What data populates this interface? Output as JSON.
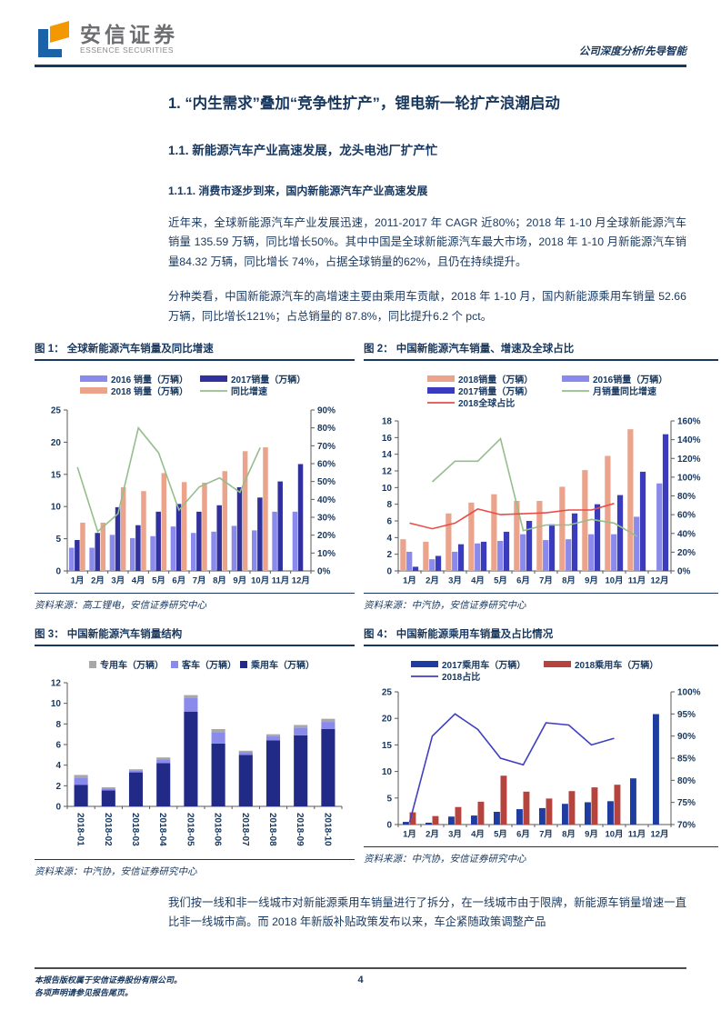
{
  "header": {
    "logo_cn": "安信证券",
    "logo_en": "ESSENCE SECURITIES",
    "right_text": "公司深度分析/先导智能"
  },
  "headings": {
    "h1": "1. “内生需求”叠加“竞争性扩产”，锂电新一轮扩产浪潮启动",
    "h2": "1.1. 新能源汽车产业高速发展，龙头电池厂扩产忙",
    "h3": "1.1.1. 消费市逐步到来，国内新能源汽车产业高速发展"
  },
  "paragraphs": {
    "p1": "近年来，全球新能源汽车产业发展迅速，2011-2017 年 CAGR 近80%；2018 年 1-10 月全球新能源汽车销量 135.59 万辆，同比增长50%。其中中国是全球新能源汽车最大市场，2018 年 1-10 月新能源汽车销量84.32 万辆，同比增长 74%，占据全球销量的62%，且仍在持续提升。",
    "p2": "分种类看，中国新能源汽车的高增速主要由乘用车贡献，2018 年 1-10 月，国内新能源乘用车销量 52.66 万辆，同比增长121%；占总销量的 87.8%，同比提升6.2 个 pct。",
    "p3": "我们按一线和非一线城市对新能源乘用车销量进行了拆分，在一线城市由于限牌，新能源车销量增速一直比非一线城市高。而 2018 年新版补贴政策发布以来，车企紧随政策调整产品"
  },
  "figures": [
    {
      "title": "图 1： 全球新能源汽车销量及同比增速",
      "source": "资料来源：高工锂电，安信证券研究中心"
    },
    {
      "title": "图 2： 中国新能源汽车销量、增速及全球占比",
      "source": "资料来源：中汽协，安信证券研究中心"
    },
    {
      "title": "图 3： 中国新能源汽车销量结构",
      "source": "资料来源：中汽协，安信证券研究中心"
    },
    {
      "title": "图 4： 中国新能源乘用车销量及占比情况",
      "source": "资料来源：中汽协，安信证券研究中心"
    }
  ],
  "footer": {
    "left_line1": "本报告版权属于安信证券股份有限公司。",
    "left_line2": "各项声明请参见报告尾页。",
    "page_number": "4"
  },
  "colors": {
    "navy_text": "#17375e",
    "light_blue": "#8a8aec",
    "dark_blue_2017": "#31319e",
    "salmon_2018": "#eba38b",
    "green_line": "#94be8c",
    "red_line": "#e84d4a",
    "brick_2018": "#b5443f",
    "gray_special": "#a8a8a8",
    "logo_blue": "#1a63a8",
    "logo_orange": "#f39800"
  },
  "chart_data": [
    {
      "id": "fig1",
      "type": "bar",
      "title": "全球新能源汽车销量及同比增速",
      "legend_position": "top",
      "grid": false,
      "categories": [
        "1月",
        "2月",
        "3月",
        "4月",
        "5月",
        "6月",
        "7月",
        "8月",
        "9月",
        "10月",
        "11月",
        "12月"
      ],
      "series": [
        {
          "name": "2016 销量（万辆）",
          "color": "#8a8aec",
          "values": [
            3.6,
            3.6,
            5.6,
            5.1,
            5.4,
            6.9,
            5.9,
            6.1,
            7.0,
            6.3,
            9.2,
            9.2
          ]
        },
        {
          "name": "2017销量（万辆）",
          "color": "#31319e",
          "values": [
            4.8,
            5.9,
            9.9,
            7.1,
            9.2,
            10.4,
            9.2,
            10.2,
            13.0,
            11.4,
            13.9,
            16.6
          ]
        },
        {
          "name": "2018 销量（万辆）",
          "color": "#eba38b",
          "values": [
            7.5,
            7.5,
            13.0,
            12.4,
            15.2,
            13.8,
            13.7,
            15.5,
            18.6,
            19.2,
            null,
            null
          ]
        }
      ],
      "lines": [
        {
          "name": "同比增速",
          "color": "#94be8c",
          "axis": "right",
          "values": [
            58,
            22,
            32,
            80,
            66,
            34,
            47,
            52,
            44,
            69,
            null,
            null
          ]
        }
      ],
      "left_axis": {
        "min": 0,
        "max": 25,
        "step": 5,
        "unit": ""
      },
      "right_axis": {
        "min": 0,
        "max": 90,
        "step": 10,
        "unit": "%"
      }
    },
    {
      "id": "fig2",
      "type": "bar",
      "title": "中国新能源汽车销量、增速及全球占比",
      "legend_position": "top",
      "grid": false,
      "categories": [
        "1月",
        "2月",
        "3月",
        "4月",
        "5月",
        "6月",
        "7月",
        "8月",
        "9月",
        "10月",
        "11月",
        "12月"
      ],
      "series": [
        {
          "name": "2018销量（万辆）",
          "color": "#eba38b",
          "values": [
            3.8,
            3.5,
            6.9,
            8.2,
            9.2,
            8.4,
            8.4,
            10.1,
            12.1,
            13.8,
            17.0,
            null
          ]
        },
        {
          "name": "2016销量（万辆）",
          "color": "#8a8aec",
          "values": [
            2.3,
            1.4,
            2.3,
            3.3,
            3.6,
            4.4,
            3.7,
            3.8,
            4.4,
            4.4,
            6.5,
            10.5
          ]
        },
        {
          "name": "2017销量（万辆）",
          "color": "#3b3bbd",
          "values": [
            0.5,
            1.8,
            3.2,
            3.5,
            4.7,
            6.0,
            5.6,
            6.9,
            8.0,
            9.1,
            11.9,
            16.4
          ]
        }
      ],
      "lines": [
        {
          "name": "月销量同比增速",
          "color": "#94be8c",
          "axis": "right",
          "values": [
            null,
            95,
            117,
            117,
            141,
            43,
            49,
            49,
            55,
            51,
            37,
            null
          ]
        },
        {
          "name": "2018全球占比",
          "color": "#e84d4a",
          "axis": "right",
          "values": [
            51,
            45,
            51,
            66,
            60,
            61,
            62,
            65,
            65,
            72,
            null,
            null
          ]
        }
      ],
      "left_axis": {
        "min": 0,
        "max": 18,
        "step": 2,
        "unit": ""
      },
      "right_axis": {
        "min": 0,
        "max": 160,
        "step": 20,
        "unit": "%"
      }
    },
    {
      "id": "fig3",
      "type": "bar",
      "stacked": true,
      "title": "中国新能源汽车销量结构",
      "legend_position": "top",
      "grid": false,
      "categories": [
        "2018-01",
        "2018-02",
        "2018-03",
        "2018-04",
        "2018-05",
        "2018-06",
        "2018-07",
        "2018-08",
        "2018-09",
        "2018-10"
      ],
      "series": [
        {
          "name": "专用车（万辆）",
          "color": "#a8a8a8",
          "values": [
            0.25,
            0.1,
            0.1,
            0.2,
            0.3,
            0.3,
            0.15,
            0.2,
            0.25,
            0.3
          ]
        },
        {
          "name": "客车（万辆）",
          "color": "#8a8aec",
          "values": [
            0.7,
            0.2,
            0.2,
            0.35,
            1.3,
            1.1,
            0.25,
            0.4,
            0.75,
            0.7
          ]
        },
        {
          "name": "乘用车（万辆）",
          "color": "#222a87",
          "values": [
            2.1,
            1.55,
            3.3,
            4.2,
            9.2,
            6.1,
            5.0,
            6.4,
            6.9,
            7.5
          ]
        }
      ],
      "lines": [],
      "left_axis": {
        "min": 0,
        "max": 12,
        "step": 2,
        "unit": ""
      },
      "right_axis": null
    },
    {
      "id": "fig4",
      "type": "bar",
      "title": "中国新能源乘用车销量及占比情况",
      "legend_position": "top",
      "grid": false,
      "categories": [
        "1月",
        "2月",
        "3月",
        "4月",
        "5月",
        "6月",
        "7月",
        "8月",
        "9月",
        "10月",
        "11月",
        "12月"
      ],
      "series": [
        {
          "name": "2017乘用车（万辆）",
          "color": "#1f3da0",
          "values": [
            0.5,
            0.35,
            1.5,
            1.7,
            2.4,
            2.9,
            3.1,
            3.9,
            4.2,
            4.4,
            8.7,
            20.8
          ]
        },
        {
          "name": "2018乘用车（万辆）",
          "color": "#b5443f",
          "values": [
            2.3,
            1.6,
            3.3,
            4.3,
            9.2,
            6.2,
            4.9,
            6.3,
            7.0,
            7.5,
            null,
            null
          ]
        }
      ],
      "lines": [
        {
          "name": "2018占比",
          "color": "#4040c0",
          "axis": "right",
          "values": [
            70.5,
            90,
            95,
            91.5,
            85,
            83.5,
            93,
            92.5,
            88,
            89.5,
            null,
            null
          ]
        }
      ],
      "left_axis": {
        "min": 0,
        "max": 25,
        "step": 5,
        "unit": ""
      },
      "right_axis": {
        "min": 70,
        "max": 100,
        "step": 5,
        "unit": "%"
      }
    }
  ]
}
